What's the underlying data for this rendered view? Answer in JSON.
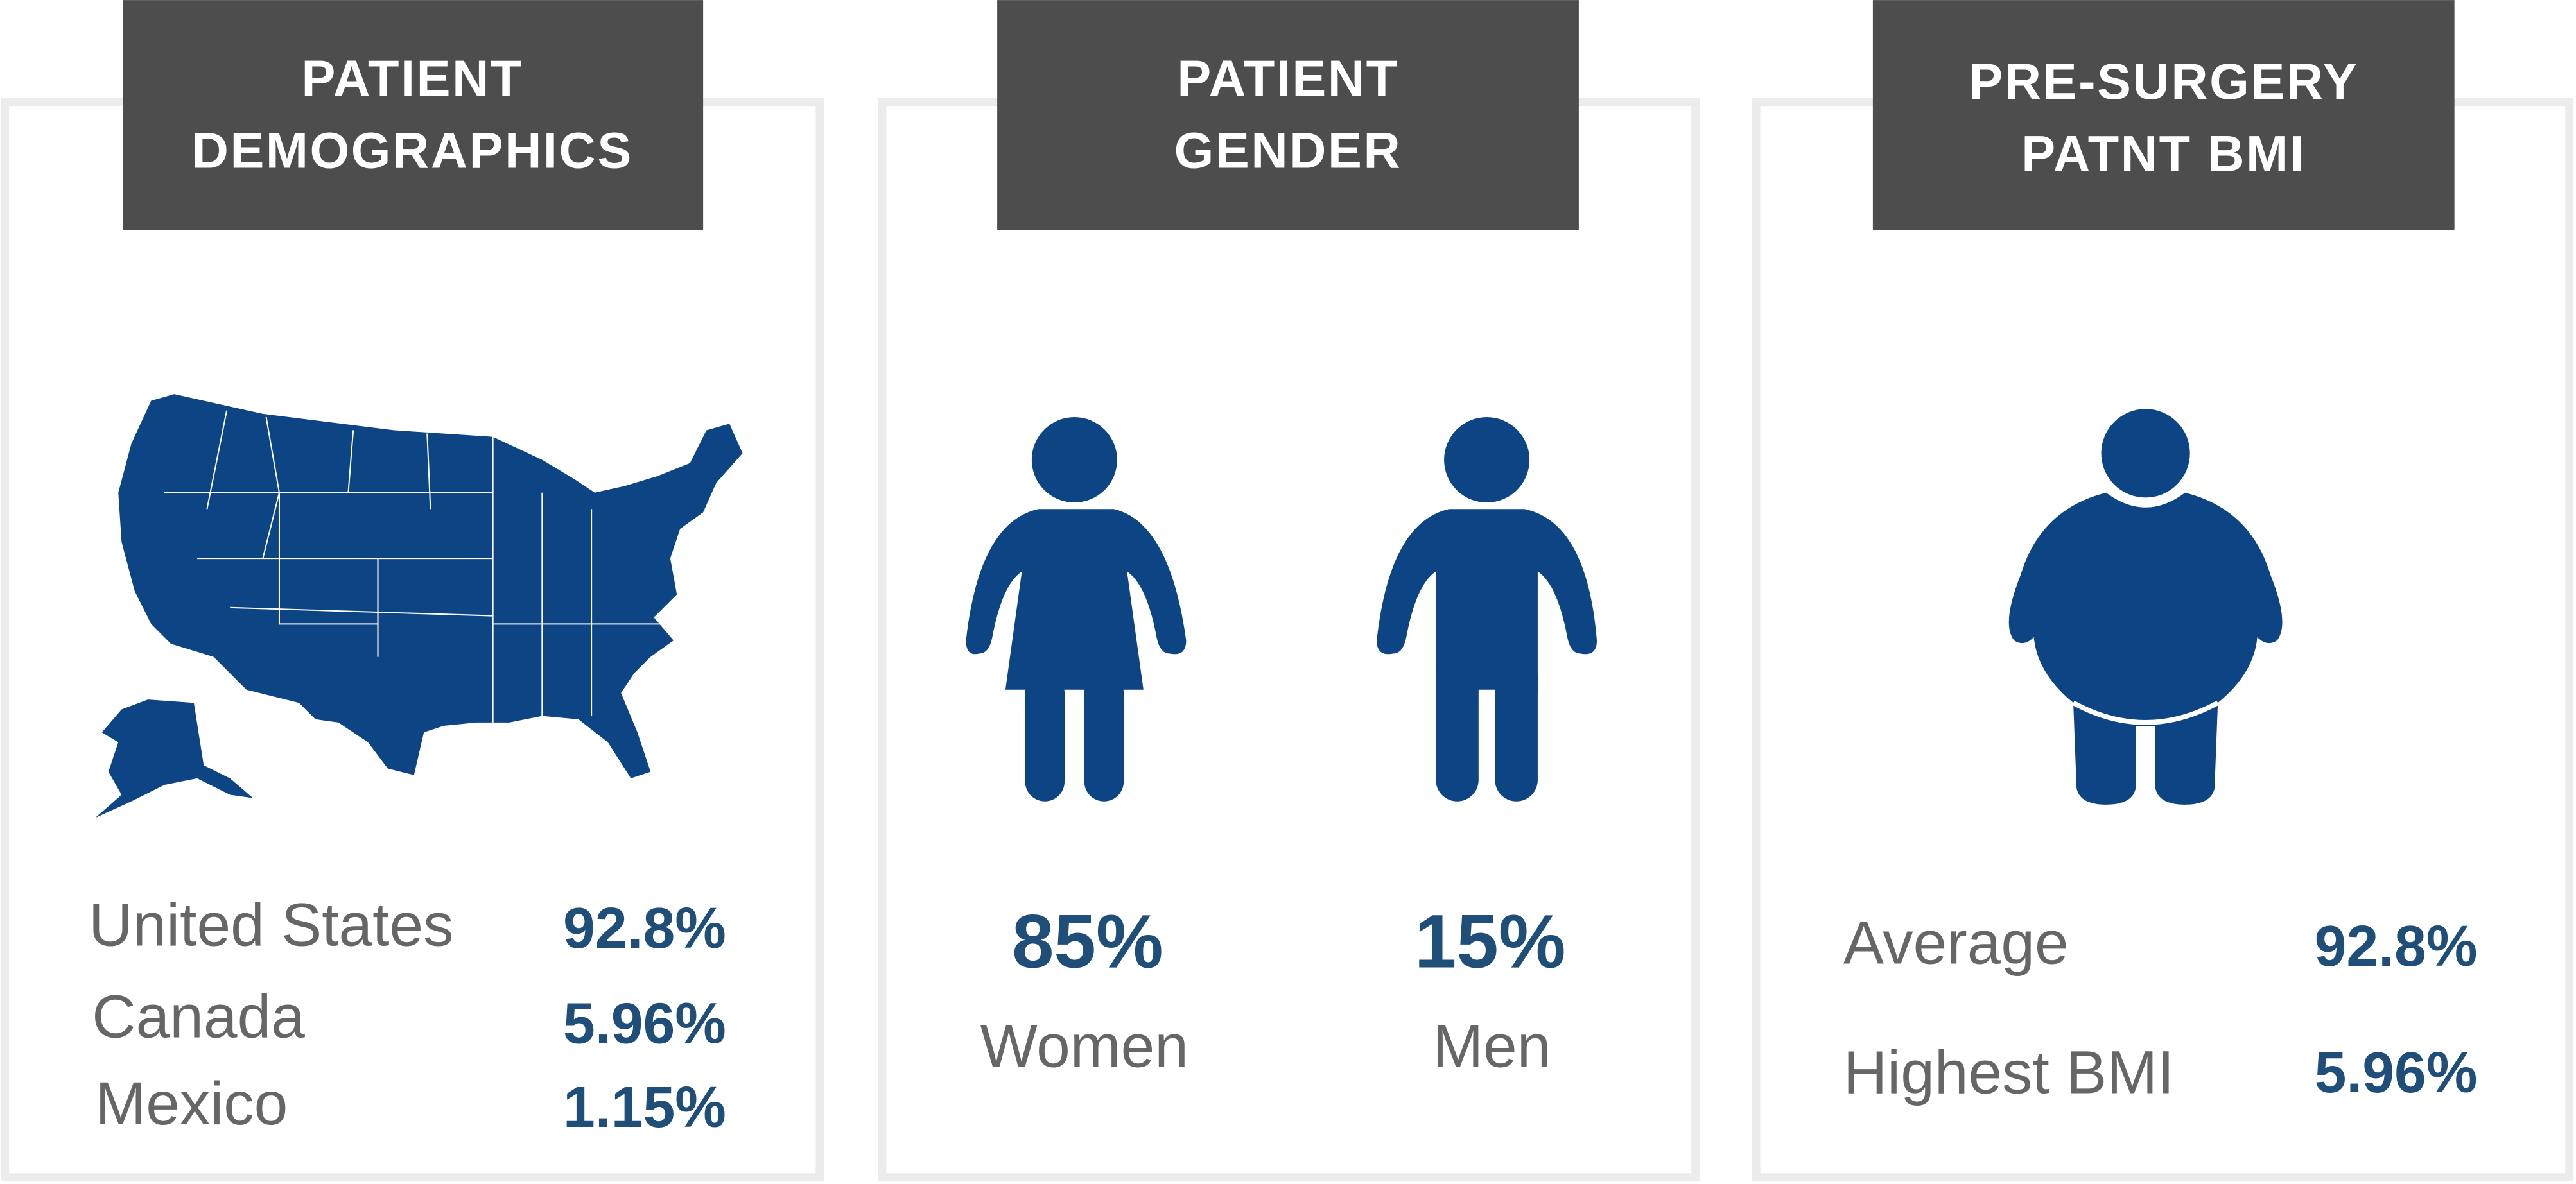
{
  "panels": [
    {
      "title_lines": [
        "PATIENT",
        "DEMOGRAPHICS"
      ],
      "rows": [
        {
          "label": "United States",
          "value": "92.8%"
        },
        {
          "label": "Canada",
          "value": "5.96%"
        },
        {
          "label": "Mexico",
          "value": "1.15%"
        }
      ]
    },
    {
      "title_lines": [
        "PATIENT",
        "GENDER"
      ],
      "groups": [
        {
          "value": "85%",
          "label": "Women"
        },
        {
          "value": "15%",
          "label": "Men"
        }
      ]
    },
    {
      "title_lines": [
        "PRE-SURGERY",
        "PATNT BMI"
      ],
      "rows": [
        {
          "label": "Average",
          "value": "92.8%"
        },
        {
          "label": "Highest BMI",
          "value": "5.96%"
        }
      ]
    }
  ]
}
